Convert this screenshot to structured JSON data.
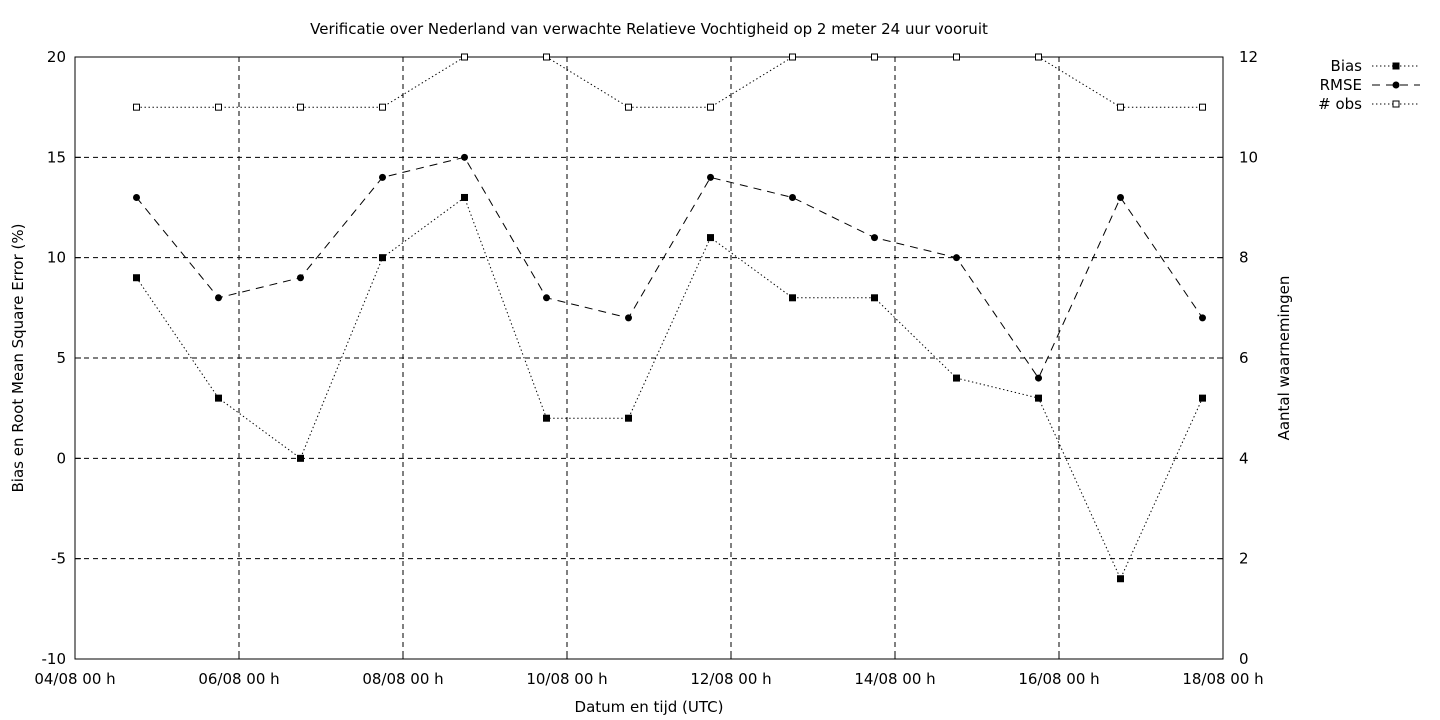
{
  "chart_data": {
    "type": "line",
    "title": "Verificatie over Nederland van verwachte Relatieve Vochtigheid op 2 meter 24 uur vooruit",
    "xlabel": "Datum en tijd (UTC)",
    "ylabel": "Bias en Root Mean Square Error (%)",
    "y2label": "Aantal waarnemingen",
    "x_range": [
      "2023-08-04 00:00",
      "2023-08-18 00:00"
    ],
    "x_ticks": [
      "04/08 00 h",
      "06/08 00 h",
      "08/08 00 h",
      "10/08 00 h",
      "12/08 00 h",
      "14/08 00 h",
      "16/08 00 h",
      "18/08 00 h"
    ],
    "ylim": [
      -10,
      20
    ],
    "y_ticks": [
      "-10",
      "-5",
      "0",
      "5",
      "10",
      "15",
      "20"
    ],
    "y2lim": [
      0,
      12
    ],
    "y2_ticks": [
      "0",
      "2",
      "4",
      "6",
      "8",
      "10",
      "12"
    ],
    "grid": true,
    "legend_position": "top-right outside",
    "x": [
      "04/08 18 h",
      "05/08 18 h",
      "06/08 18 h",
      "07/08 18 h",
      "08/08 18 h",
      "09/08 18 h",
      "10/08 18 h",
      "11/08 18 h",
      "12/08 18 h",
      "13/08 18 h",
      "14/08 18 h",
      "15/08 18 h",
      "16/08 18 h",
      "17/08 18 h"
    ],
    "series": [
      {
        "name": "Bias",
        "axis": "left",
        "style": "dotted",
        "marker": "filled-square",
        "values": [
          9,
          3,
          0,
          10,
          13,
          2,
          2,
          11,
          8,
          8,
          4,
          3,
          -6,
          3
        ]
      },
      {
        "name": "RMSE",
        "axis": "left",
        "style": "dashed",
        "marker": "filled-circle",
        "values": [
          13,
          8,
          9,
          14,
          15,
          8,
          7,
          14,
          13,
          11,
          10,
          4,
          13,
          7
        ]
      },
      {
        "name": "# obs",
        "axis": "right",
        "style": "dotted",
        "marker": "open-square",
        "values": [
          11,
          11,
          11,
          11,
          12,
          12,
          11,
          11,
          12,
          12,
          12,
          12,
          11,
          11
        ]
      }
    ]
  }
}
